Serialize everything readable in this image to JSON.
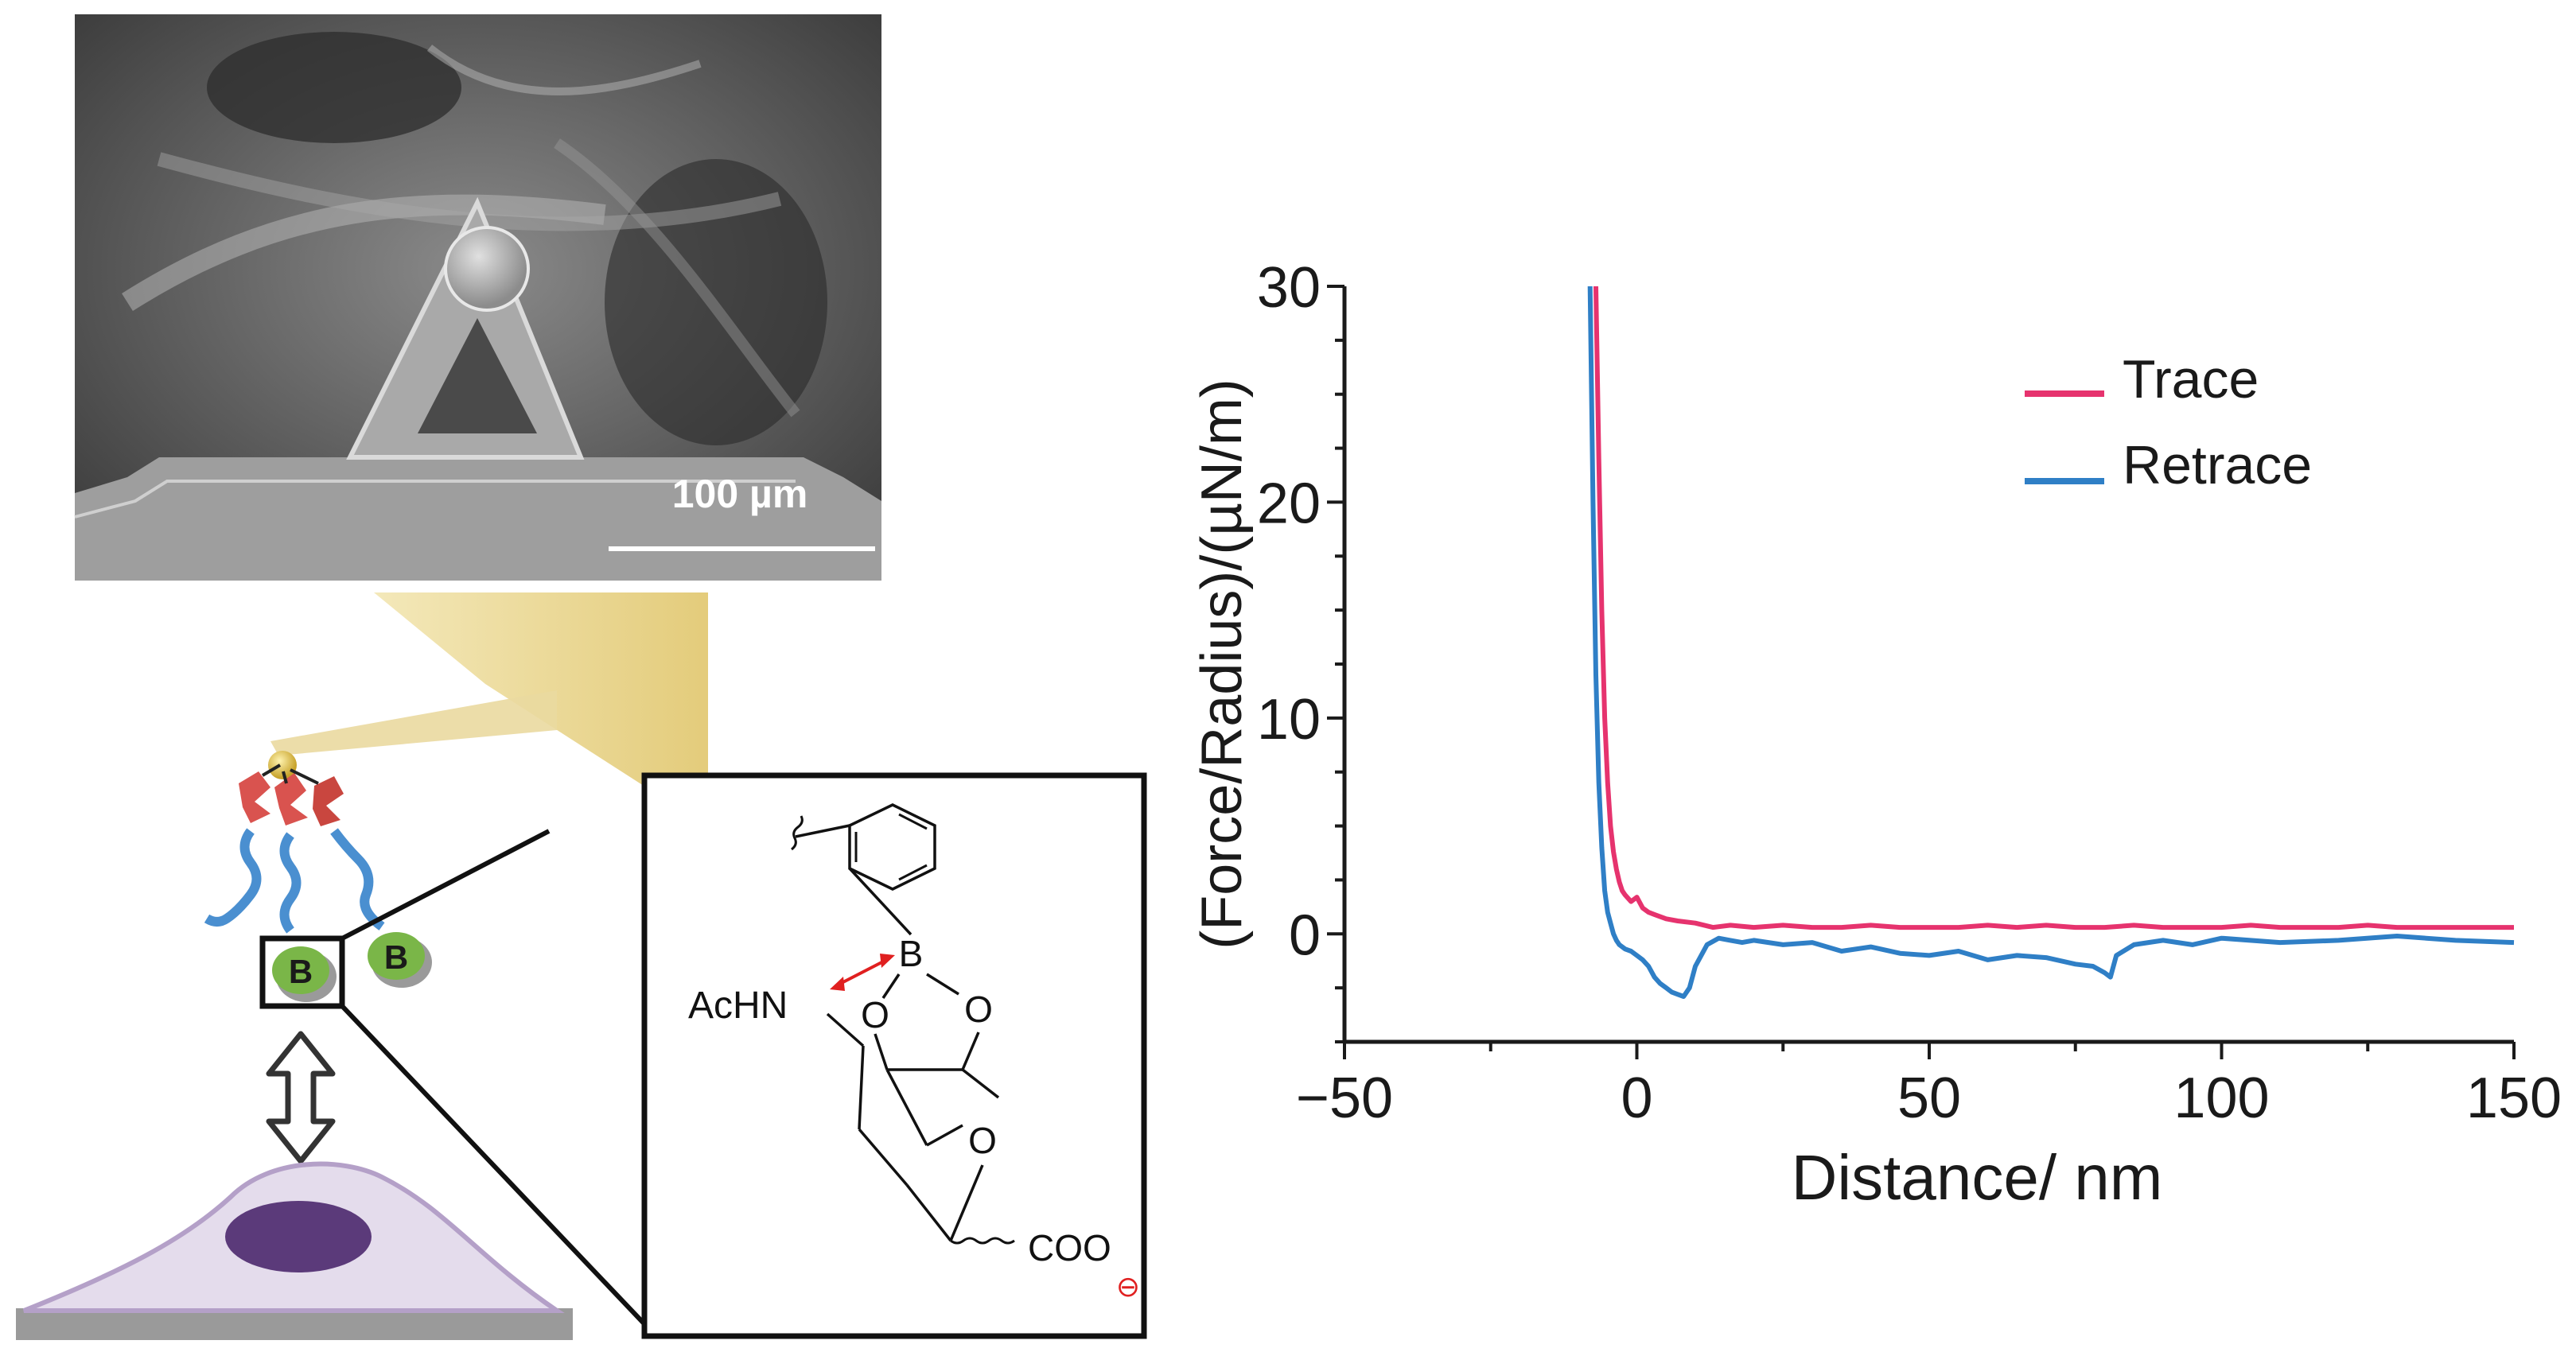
{
  "sem_image": {
    "scale_bar_label": "100 µm"
  },
  "schematic": {
    "boron_label": "B"
  },
  "chemical_structure": {
    "labels": {
      "achn": "AcHN",
      "boron": "B",
      "oxygen": "O",
      "carboxylate": "COO",
      "charge": "⊖"
    }
  },
  "colors": {
    "trace": "#e6336e",
    "retrace": "#2f7fc6",
    "tip_gold": "#e8d48a",
    "cell_fill": "#e4dcec",
    "cell_outline": "#b4a0c8",
    "nucleus": "#5b3a7a",
    "ligand_red": "#d9534f",
    "linker_blue": "#4a8fd0",
    "bead_green": "#7ab648"
  },
  "chart_data": {
    "type": "line",
    "title": "",
    "xlabel": "Distance/ nm",
    "ylabel": "(Force/Radius)/(µN/m)",
    "xlim": [
      -50,
      150
    ],
    "ylim": [
      -5,
      30
    ],
    "xticks": [
      -50,
      0,
      50,
      100,
      150
    ],
    "xtick_labels": [
      "−50",
      "0",
      "50",
      "100",
      "150"
    ],
    "yticks": [
      0,
      10,
      20,
      30
    ],
    "ytick_labels": [
      "0",
      "10",
      "20",
      "30"
    ],
    "grid": false,
    "legend_position": "top-right",
    "series": [
      {
        "name": "Trace",
        "color": "#e6336e",
        "x": [
          -7,
          -6.5,
          -6,
          -5.5,
          -5,
          -4.5,
          -4,
          -3.5,
          -3,
          -2.5,
          -2,
          -1,
          0,
          1,
          2,
          3,
          5,
          7,
          10,
          13,
          16,
          20,
          25,
          30,
          35,
          40,
          45,
          50,
          55,
          60,
          65,
          70,
          75,
          80,
          85,
          90,
          95,
          100,
          105,
          110,
          115,
          120,
          125,
          130,
          135,
          140,
          145,
          150
        ],
        "y": [
          30,
          22,
          15,
          10,
          7,
          5,
          3.8,
          3,
          2.4,
          2,
          1.8,
          1.5,
          1.7,
          1.2,
          1.0,
          0.9,
          0.7,
          0.6,
          0.5,
          0.3,
          0.4,
          0.3,
          0.4,
          0.3,
          0.3,
          0.4,
          0.3,
          0.3,
          0.3,
          0.4,
          0.3,
          0.4,
          0.3,
          0.3,
          0.4,
          0.3,
          0.3,
          0.3,
          0.4,
          0.3,
          0.3,
          0.3,
          0.4,
          0.3,
          0.3,
          0.3,
          0.3,
          0.3
        ]
      },
      {
        "name": "Retrace",
        "color": "#2f7fc6",
        "x": [
          -8,
          -7.5,
          -7,
          -6.5,
          -6,
          -5.5,
          -5,
          -4.5,
          -4,
          -3.5,
          -3,
          -2,
          -1,
          0,
          1,
          2,
          3,
          4,
          5,
          6,
          7,
          8,
          9,
          10,
          12,
          14,
          16,
          18,
          20,
          25,
          30,
          35,
          40,
          45,
          50,
          55,
          60,
          65,
          70,
          75,
          78,
          80,
          81,
          82,
          85,
          90,
          95,
          100,
          110,
          120,
          130,
          140,
          150
        ],
        "y": [
          30,
          20,
          12,
          7,
          4,
          2,
          1,
          0.5,
          0,
          -0.3,
          -0.5,
          -0.7,
          -0.8,
          -1.0,
          -1.2,
          -1.5,
          -2,
          -2.3,
          -2.5,
          -2.7,
          -2.8,
          -2.9,
          -2.5,
          -1.5,
          -0.5,
          -0.2,
          -0.3,
          -0.4,
          -0.3,
          -0.5,
          -0.4,
          -0.8,
          -0.6,
          -0.9,
          -1.0,
          -0.8,
          -1.2,
          -1.0,
          -1.1,
          -1.4,
          -1.5,
          -1.8,
          -2.0,
          -1.0,
          -0.5,
          -0.3,
          -0.5,
          -0.2,
          -0.4,
          -0.3,
          -0.1,
          -0.3,
          -0.4
        ]
      }
    ]
  }
}
